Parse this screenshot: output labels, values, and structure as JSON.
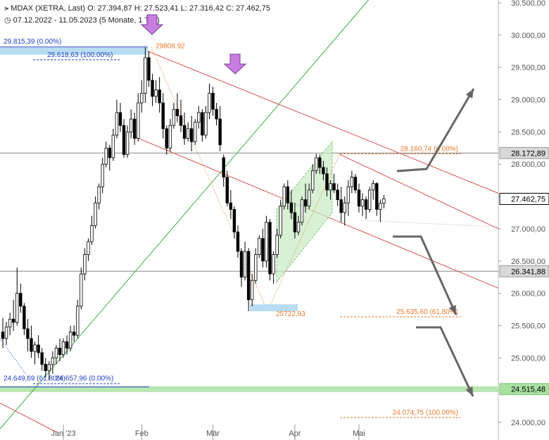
{
  "header": {
    "title_line": "MDAX (XETRA, Last)   O: 27.394,87   H: 27.523,41   L: 27.316,42   C: 27.462,75",
    "range_line": "07.12.2022 - 11.05.2023   (5 Monate, 1 Tag)"
  },
  "chart_data": {
    "type": "candlestick",
    "y_scale": "linear",
    "ylim": [
      23850,
      30600
    ],
    "y_ticks": [
      {
        "value": 24000,
        "label": "24.000,00"
      },
      {
        "value": 24500,
        "label": "24.500,00"
      },
      {
        "value": 25000,
        "label": "25.000,00"
      },
      {
        "value": 25500,
        "label": "25.500,00"
      },
      {
        "value": 26000,
        "label": "26.000,00"
      },
      {
        "value": 26500,
        "label": "26.500,00"
      },
      {
        "value": 27000,
        "label": "27.000,00"
      },
      {
        "value": 27500,
        "label": "27.500,00"
      },
      {
        "value": 28000,
        "label": "28.000,00"
      },
      {
        "value": 28500,
        "label": "28.500,00"
      },
      {
        "value": 29000,
        "label": "29.000,00"
      },
      {
        "value": 29500,
        "label": "29.500,00"
      },
      {
        "value": 30000,
        "label": "30.000,00"
      },
      {
        "value": 30500,
        "label": "30.500,00"
      }
    ],
    "x_ticks": [
      {
        "date": "2023-01-02",
        "label": "Jan '23"
      },
      {
        "date": "2023-02-01",
        "label": "Feb"
      },
      {
        "date": "2023-03-01",
        "label": "Mär"
      },
      {
        "date": "2023-04-03",
        "label": "Apr"
      },
      {
        "date": "2023-05-02",
        "label": "Mai"
      }
    ],
    "candles": [
      {
        "date": "2022-12-07",
        "o": 25400,
        "h": 25620,
        "l": 25150,
        "c": 25300
      },
      {
        "date": "2022-12-08",
        "o": 25300,
        "h": 25560,
        "l": 25200,
        "c": 25480
      },
      {
        "date": "2022-12-09",
        "o": 25480,
        "h": 25700,
        "l": 25350,
        "c": 25600
      },
      {
        "date": "2022-12-12",
        "o": 25600,
        "h": 25900,
        "l": 25420,
        "c": 25550
      },
      {
        "date": "2022-12-13",
        "o": 25550,
        "h": 26400,
        "l": 25500,
        "c": 26000
      },
      {
        "date": "2022-12-14",
        "o": 26000,
        "h": 26150,
        "l": 25700,
        "c": 25800
      },
      {
        "date": "2022-12-15",
        "o": 25800,
        "h": 25850,
        "l": 25350,
        "c": 25450
      },
      {
        "date": "2022-12-16",
        "o": 25450,
        "h": 25600,
        "l": 25100,
        "c": 25300
      },
      {
        "date": "2022-12-19",
        "o": 25300,
        "h": 25500,
        "l": 25000,
        "c": 25100
      },
      {
        "date": "2022-12-20",
        "o": 25100,
        "h": 25250,
        "l": 24900,
        "c": 25200
      },
      {
        "date": "2022-12-21",
        "o": 25200,
        "h": 25350,
        "l": 25000,
        "c": 25080
      },
      {
        "date": "2022-12-22",
        "o": 25080,
        "h": 25150,
        "l": 24800,
        "c": 24900
      },
      {
        "date": "2022-12-23",
        "o": 24900,
        "h": 25000,
        "l": 24700,
        "c": 24800
      },
      {
        "date": "2022-12-27",
        "o": 24800,
        "h": 24950,
        "l": 24658,
        "c": 24900
      },
      {
        "date": "2022-12-28",
        "o": 24900,
        "h": 25100,
        "l": 24750,
        "c": 25000
      },
      {
        "date": "2022-12-29",
        "o": 25000,
        "h": 25200,
        "l": 24900,
        "c": 25150
      },
      {
        "date": "2022-12-30",
        "o": 25150,
        "h": 25300,
        "l": 24950,
        "c": 25050
      },
      {
        "date": "2023-01-02",
        "o": 25050,
        "h": 25300,
        "l": 25000,
        "c": 25250
      },
      {
        "date": "2023-01-03",
        "o": 25250,
        "h": 25350,
        "l": 25050,
        "c": 25150
      },
      {
        "date": "2023-01-04",
        "o": 25150,
        "h": 25500,
        "l": 25100,
        "c": 25400
      },
      {
        "date": "2023-01-05",
        "o": 25400,
        "h": 25500,
        "l": 25250,
        "c": 25350
      },
      {
        "date": "2023-01-06",
        "o": 25350,
        "h": 25900,
        "l": 25300,
        "c": 25800
      },
      {
        "date": "2023-01-09",
        "o": 25800,
        "h": 26400,
        "l": 25750,
        "c": 26300
      },
      {
        "date": "2023-01-10",
        "o": 26300,
        "h": 26700,
        "l": 26200,
        "c": 26600
      },
      {
        "date": "2023-01-11",
        "o": 26600,
        "h": 26850,
        "l": 26500,
        "c": 26800
      },
      {
        "date": "2023-01-12",
        "o": 26800,
        "h": 27200,
        "l": 26750,
        "c": 27050
      },
      {
        "date": "2023-01-13",
        "o": 27050,
        "h": 27500,
        "l": 27000,
        "c": 27400
      },
      {
        "date": "2023-01-16",
        "o": 27400,
        "h": 27700,
        "l": 27300,
        "c": 27650
      },
      {
        "date": "2023-01-17",
        "o": 27650,
        "h": 28100,
        "l": 27550,
        "c": 28000
      },
      {
        "date": "2023-01-18",
        "o": 28000,
        "h": 28350,
        "l": 27950,
        "c": 28250
      },
      {
        "date": "2023-01-19",
        "o": 28250,
        "h": 28300,
        "l": 27900,
        "c": 28100
      },
      {
        "date": "2023-01-20",
        "o": 28100,
        "h": 28550,
        "l": 28050,
        "c": 28450
      },
      {
        "date": "2023-01-23",
        "o": 28450,
        "h": 29000,
        "l": 28400,
        "c": 28800
      },
      {
        "date": "2023-01-24",
        "o": 28800,
        "h": 28950,
        "l": 28500,
        "c": 28600
      },
      {
        "date": "2023-01-25",
        "o": 28600,
        "h": 28700,
        "l": 28100,
        "c": 28150
      },
      {
        "date": "2023-01-26",
        "o": 28150,
        "h": 28600,
        "l": 28100,
        "c": 28500
      },
      {
        "date": "2023-01-27",
        "o": 28500,
        "h": 28850,
        "l": 28400,
        "c": 28700
      },
      {
        "date": "2023-01-30",
        "o": 28700,
        "h": 28800,
        "l": 28300,
        "c": 28400
      },
      {
        "date": "2023-01-31",
        "o": 28400,
        "h": 29100,
        "l": 28350,
        "c": 28950
      },
      {
        "date": "2023-02-01",
        "o": 28950,
        "h": 29300,
        "l": 28800,
        "c": 29100
      },
      {
        "date": "2023-02-02",
        "o": 29100,
        "h": 29809,
        "l": 28950,
        "c": 29650
      },
      {
        "date": "2023-02-03",
        "o": 29650,
        "h": 29750,
        "l": 29200,
        "c": 29300
      },
      {
        "date": "2023-02-06",
        "o": 29300,
        "h": 29400,
        "l": 28900,
        "c": 29050
      },
      {
        "date": "2023-02-07",
        "o": 29050,
        "h": 29300,
        "l": 28950,
        "c": 29150
      },
      {
        "date": "2023-02-08",
        "o": 29150,
        "h": 29350,
        "l": 28800,
        "c": 28950
      },
      {
        "date": "2023-02-09",
        "o": 28950,
        "h": 29100,
        "l": 28400,
        "c": 28550
      },
      {
        "date": "2023-02-10",
        "o": 28550,
        "h": 28600,
        "l": 28150,
        "c": 28250
      },
      {
        "date": "2023-02-13",
        "o": 28250,
        "h": 28700,
        "l": 28200,
        "c": 28600
      },
      {
        "date": "2023-02-14",
        "o": 28600,
        "h": 28950,
        "l": 28550,
        "c": 28850
      },
      {
        "date": "2023-02-15",
        "o": 28850,
        "h": 29100,
        "l": 28650,
        "c": 28750
      },
      {
        "date": "2023-02-16",
        "o": 28750,
        "h": 29000,
        "l": 28500,
        "c": 28600
      },
      {
        "date": "2023-02-17",
        "o": 28600,
        "h": 28800,
        "l": 28300,
        "c": 28400
      },
      {
        "date": "2023-02-20",
        "o": 28400,
        "h": 28650,
        "l": 28350,
        "c": 28550
      },
      {
        "date": "2023-02-21",
        "o": 28550,
        "h": 28750,
        "l": 28200,
        "c": 28350
      },
      {
        "date": "2023-02-22",
        "o": 28350,
        "h": 28700,
        "l": 28300,
        "c": 28650
      },
      {
        "date": "2023-02-23",
        "o": 28650,
        "h": 28900,
        "l": 28550,
        "c": 28800
      },
      {
        "date": "2023-02-24",
        "o": 28800,
        "h": 28850,
        "l": 28350,
        "c": 28450
      },
      {
        "date": "2023-02-27",
        "o": 28450,
        "h": 28900,
        "l": 28400,
        "c": 28800
      },
      {
        "date": "2023-02-28",
        "o": 28800,
        "h": 29250,
        "l": 28700,
        "c": 29100
      },
      {
        "date": "2023-03-01",
        "o": 29100,
        "h": 29200,
        "l": 28750,
        "c": 28850
      },
      {
        "date": "2023-03-02",
        "o": 28850,
        "h": 28950,
        "l": 28600,
        "c": 28700
      },
      {
        "date": "2023-03-03",
        "o": 28700,
        "h": 28900,
        "l": 28200,
        "c": 28300
      },
      {
        "date": "2023-03-06",
        "o": 28100,
        "h": 28150,
        "l": 27650,
        "c": 27800
      },
      {
        "date": "2023-03-07",
        "o": 27800,
        "h": 27900,
        "l": 27350,
        "c": 27400
      },
      {
        "date": "2023-03-08",
        "o": 27400,
        "h": 27600,
        "l": 27150,
        "c": 27300
      },
      {
        "date": "2023-03-09",
        "o": 27300,
        "h": 27350,
        "l": 26850,
        "c": 26950
      },
      {
        "date": "2023-03-10",
        "o": 26950,
        "h": 27050,
        "l": 26550,
        "c": 26650
      },
      {
        "date": "2023-03-13",
        "o": 26650,
        "h": 26700,
        "l": 26100,
        "c": 26250
      },
      {
        "date": "2023-03-14",
        "o": 26250,
        "h": 26800,
        "l": 26200,
        "c": 26650
      },
      {
        "date": "2023-03-15",
        "o": 26650,
        "h": 26700,
        "l": 25723,
        "c": 25900
      },
      {
        "date": "2023-03-16",
        "o": 25900,
        "h": 26300,
        "l": 25800,
        "c": 26200
      },
      {
        "date": "2023-03-17",
        "o": 26200,
        "h": 26700,
        "l": 26150,
        "c": 26600
      },
      {
        "date": "2023-03-20",
        "o": 26600,
        "h": 26900,
        "l": 26550,
        "c": 26850
      },
      {
        "date": "2023-03-21",
        "o": 26850,
        "h": 27000,
        "l": 26400,
        "c": 26500
      },
      {
        "date": "2023-03-22",
        "o": 26500,
        "h": 27200,
        "l": 26400,
        "c": 27100
      },
      {
        "date": "2023-03-23",
        "o": 27100,
        "h": 27150,
        "l": 26200,
        "c": 26300
      },
      {
        "date": "2023-03-24",
        "o": 26300,
        "h": 26650,
        "l": 26150,
        "c": 26600
      },
      {
        "date": "2023-03-27",
        "o": 26600,
        "h": 27000,
        "l": 26550,
        "c": 26900
      },
      {
        "date": "2023-03-28",
        "o": 26900,
        "h": 27450,
        "l": 26850,
        "c": 27350
      },
      {
        "date": "2023-03-29",
        "o": 27350,
        "h": 27700,
        "l": 27300,
        "c": 27650
      },
      {
        "date": "2023-03-30",
        "o": 27650,
        "h": 27750,
        "l": 27300,
        "c": 27400
      },
      {
        "date": "2023-03-31",
        "o": 27400,
        "h": 27600,
        "l": 27150,
        "c": 27250
      },
      {
        "date": "2023-04-03",
        "o": 27250,
        "h": 27400,
        "l": 26850,
        "c": 26950
      },
      {
        "date": "2023-04-04",
        "o": 26950,
        "h": 27200,
        "l": 26900,
        "c": 27100
      },
      {
        "date": "2023-04-05",
        "o": 27100,
        "h": 27500,
        "l": 27050,
        "c": 27450
      },
      {
        "date": "2023-04-06",
        "o": 27450,
        "h": 27700,
        "l": 27250,
        "c": 27350
      },
      {
        "date": "2023-04-11",
        "o": 27350,
        "h": 27700,
        "l": 27300,
        "c": 27600
      },
      {
        "date": "2023-04-12",
        "o": 27600,
        "h": 28000,
        "l": 27550,
        "c": 27900
      },
      {
        "date": "2023-04-13",
        "o": 27900,
        "h": 28161,
        "l": 27850,
        "c": 28100
      },
      {
        "date": "2023-04-14",
        "o": 28100,
        "h": 28150,
        "l": 27850,
        "c": 27950
      },
      {
        "date": "2023-04-17",
        "o": 27950,
        "h": 28050,
        "l": 27750,
        "c": 27850
      },
      {
        "date": "2023-04-18",
        "o": 27850,
        "h": 27950,
        "l": 27500,
        "c": 27600
      },
      {
        "date": "2023-04-19",
        "o": 27600,
        "h": 27750,
        "l": 27450,
        "c": 27700
      },
      {
        "date": "2023-04-20",
        "o": 27700,
        "h": 27850,
        "l": 27550,
        "c": 27600
      },
      {
        "date": "2023-04-21",
        "o": 27600,
        "h": 27700,
        "l": 27350,
        "c": 27450
      },
      {
        "date": "2023-04-24",
        "o": 27450,
        "h": 27650,
        "l": 27100,
        "c": 27250
      },
      {
        "date": "2023-04-25",
        "o": 27250,
        "h": 27500,
        "l": 27050,
        "c": 27400
      },
      {
        "date": "2023-04-26",
        "o": 27400,
        "h": 27750,
        "l": 27200,
        "c": 27650
      },
      {
        "date": "2023-04-27",
        "o": 27650,
        "h": 27900,
        "l": 27550,
        "c": 27800
      },
      {
        "date": "2023-04-28",
        "o": 27800,
        "h": 27850,
        "l": 27550,
        "c": 27600
      },
      {
        "date": "2023-05-02",
        "o": 27600,
        "h": 27700,
        "l": 27250,
        "c": 27350
      },
      {
        "date": "2023-05-03",
        "o": 27350,
        "h": 27550,
        "l": 27200,
        "c": 27450
      },
      {
        "date": "2023-05-04",
        "o": 27450,
        "h": 27500,
        "l": 27150,
        "c": 27300
      },
      {
        "date": "2023-05-05",
        "o": 27300,
        "h": 27650,
        "l": 27250,
        "c": 27600
      },
      {
        "date": "2023-05-08",
        "o": 27600,
        "h": 27750,
        "l": 27450,
        "c": 27700
      },
      {
        "date": "2023-05-09",
        "o": 27700,
        "h": 27720,
        "l": 27200,
        "c": 27300
      },
      {
        "date": "2023-05-10",
        "o": 27300,
        "h": 27450,
        "l": 27100,
        "c": 27394
      },
      {
        "date": "2023-05-11",
        "o": 27394.87,
        "h": 27523.41,
        "l": 27316.42,
        "c": 27462.75
      }
    ],
    "price_markers": [
      {
        "value": 28172.89,
        "label": "28.172,89",
        "style": "gray"
      },
      {
        "value": 27462.75,
        "label": "27.462,75",
        "style": "last"
      },
      {
        "value": 26341.88,
        "label": "26.341,88",
        "style": "gray"
      },
      {
        "value": 24515.48,
        "label": "24.515,48",
        "style": "green"
      }
    ],
    "annotations": {
      "top_left_fib_high": "29.815,39 (0.00%)",
      "top_left_fib_level": "29.618,63 (100.00%)",
      "bottom_left_fib": "24.649,69 (61.80%)",
      "bottom_left_fib2": "24.657,96 (0.00%)",
      "peak_label": "29808.92",
      "low_label": "25722.93",
      "fib_0": "28.160,74 (0.00%)",
      "fib_618": "25.635,60 (61.80%)",
      "fib_100": "24.074,75 (100.00%)"
    },
    "colors": {
      "up": "#ffffff",
      "down": "#000000",
      "trend_red": "#d9534f",
      "trend_green": "#3cb043",
      "fib_orange": "#e87a2a",
      "fib_blue": "#1f3fbf",
      "arrow_purple": "#c87de0",
      "projection_gray": "#666666"
    }
  }
}
